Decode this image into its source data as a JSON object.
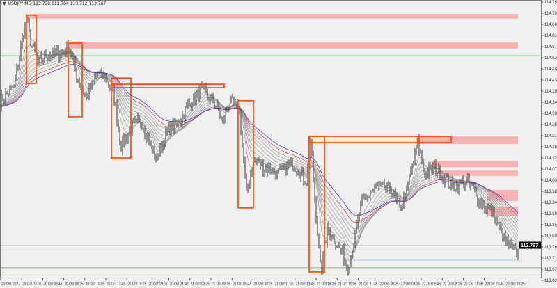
{
  "header": {
    "symbol": "USDJPY,M5",
    "ohlc": "113.728 113.784 113.712 113.767",
    "menu_icon": "triangle-down-icon"
  },
  "chart_data": {
    "type": "candlestick",
    "symbol": "USDJPY",
    "timeframe": "M5",
    "ylim": [
      113.625,
      114.75
    ],
    "y_ticks": [
      "114.750",
      "114.705",
      "114.660",
      "114.615",
      "114.570",
      "114.525",
      "114.480",
      "114.435",
      "114.390",
      "114.345",
      "114.300",
      "114.255",
      "114.210",
      "114.165",
      "114.120",
      "114.075",
      "114.030",
      "113.985",
      "113.940",
      "113.895",
      "113.850",
      "113.805",
      "113.760",
      "113.715",
      "113.670",
      "113.625"
    ],
    "x_ticks": [
      "20 Oct 2021",
      "20 Oct 03:05",
      "20 Oct 05:45",
      "20 Oct 08:25",
      "20 Oct 11:05",
      "20 Oct 13:45",
      "20 Oct 16:25",
      "20 Oct 19:05",
      "20 Oct 21:45",
      "21 Oct 00:25",
      "21 Oct 03:05",
      "21 Oct 05:45",
      "21 Oct 08:25",
      "21 Oct 11:05",
      "21 Oct 13:45",
      "21 Oct 16:25",
      "21 Oct 19:05",
      "21 Oct 21:45",
      "22 Oct 00:25",
      "22 Oct 03:05",
      "22 Oct 05:45",
      "22 Oct 08:25",
      "22 Oct 11:05",
      "22 Oct 13:45",
      "22 Oct 16:25"
    ],
    "current_price": "113.767",
    "close_path": [
      [
        0,
        114.351
      ],
      [
        10,
        114.407
      ],
      [
        19,
        114.688
      ],
      [
        22,
        114.59
      ],
      [
        27,
        114.505
      ],
      [
        32,
        114.533
      ],
      [
        40,
        114.539
      ],
      [
        50,
        114.567
      ],
      [
        55,
        114.449
      ],
      [
        62,
        114.365
      ],
      [
        70,
        114.463
      ],
      [
        77,
        114.435
      ],
      [
        82,
        114.365
      ],
      [
        87,
        114.168
      ],
      [
        95,
        114.252
      ],
      [
        102,
        114.266
      ],
      [
        112,
        114.112
      ],
      [
        120,
        114.224
      ],
      [
        130,
        114.28
      ],
      [
        135,
        114.337
      ],
      [
        145,
        114.393
      ],
      [
        155,
        114.337
      ],
      [
        160,
        114.266
      ],
      [
        165,
        114.351
      ],
      [
        172,
        114.308
      ],
      [
        177,
        113.971
      ],
      [
        182,
        114.112
      ],
      [
        190,
        114.083
      ],
      [
        200,
        114.055
      ],
      [
        210,
        114.098
      ],
      [
        220,
        114.027
      ],
      [
        223,
        114.196
      ],
      [
        227,
        113.858
      ],
      [
        231,
        113.676
      ],
      [
        235,
        113.83
      ],
      [
        245,
        113.746
      ],
      [
        250,
        113.676
      ],
      [
        260,
        113.943
      ],
      [
        270,
        113.999
      ],
      [
        280,
        113.999
      ],
      [
        287,
        113.915
      ],
      [
        292,
        113.985
      ],
      [
        300,
        114.182
      ],
      [
        305,
        114.055
      ],
      [
        312,
        114.083
      ],
      [
        325,
        113.999
      ],
      [
        335,
        114.027
      ],
      [
        345,
        113.943
      ],
      [
        355,
        113.887
      ],
      [
        362,
        113.788
      ],
      [
        372,
        113.732
      ]
    ],
    "rectangles": [
      {
        "kind": "outline",
        "color": "#ff4500",
        "bars": [
          19,
          26
        ],
        "prices": [
          114.697,
          114.421
        ]
      },
      {
        "kind": "outline",
        "color": "#ff4500",
        "bars": [
          49,
          59
        ],
        "prices": [
          114.584,
          114.286
        ]
      },
      {
        "kind": "outline",
        "color": "#ff4500",
        "bars": [
          80,
          94
        ],
        "prices": [
          114.443,
          114.12
        ]
      },
      {
        "kind": "outline",
        "color": "#ff4500",
        "bars": [
          81,
          161
        ],
        "prices": [
          114.418,
          114.404
        ]
      },
      {
        "kind": "outline",
        "color": "#ff4500",
        "bars": [
          171,
          182
        ],
        "prices": [
          114.351,
          113.918
        ]
      },
      {
        "kind": "outline",
        "color": "#ff4500",
        "bars": [
          222,
          233
        ],
        "prices": [
          114.207,
          113.659
        ]
      },
      {
        "kind": "outline",
        "color": "#ff4500",
        "bars": [
          222,
          324
        ],
        "prices": [
          114.207,
          114.182
        ]
      },
      {
        "kind": "zone",
        "color": "#f7b3b3",
        "bars": [
          21,
          372
        ],
        "prices": [
          114.702,
          114.683
        ]
      },
      {
        "kind": "zone",
        "color": "#f7b3b3",
        "bars": [
          49,
          372
        ],
        "prices": [
          114.587,
          114.562
        ]
      },
      {
        "kind": "zone",
        "color": "#f7b3b3",
        "bars": [
          299,
          372
        ],
        "prices": [
          114.207,
          114.176
        ]
      },
      {
        "kind": "zone",
        "color": "#f7b3b3",
        "bars": [
          310,
          372
        ],
        "prices": [
          114.109,
          114.083
        ]
      },
      {
        "kind": "zone",
        "color": "#f7b3b3",
        "bars": [
          315,
          372
        ],
        "prices": [
          114.069,
          114.047
        ]
      },
      {
        "kind": "zone",
        "color": "#f7b3b3",
        "bars": [
          350,
          372
        ],
        "prices": [
          113.991,
          113.946
        ]
      },
      {
        "kind": "zone",
        "color": "#f7b3b3",
        "bars": [
          350,
          372
        ],
        "prices": [
          113.923,
          113.884
        ]
      }
    ],
    "lines": [
      {
        "color": "#8fc98f",
        "price": 114.533,
        "bars": [
          0,
          389
        ]
      },
      {
        "color": "#8fc98f",
        "price": 113.676,
        "bars": [
          0,
          389
        ]
      },
      {
        "color": "#add8e6",
        "price": 113.707,
        "bars": [
          252,
          372
        ]
      }
    ],
    "ma_colors": {
      "fast": "#888888",
      "red": "#e03030",
      "blue": "#3030e0"
    }
  }
}
